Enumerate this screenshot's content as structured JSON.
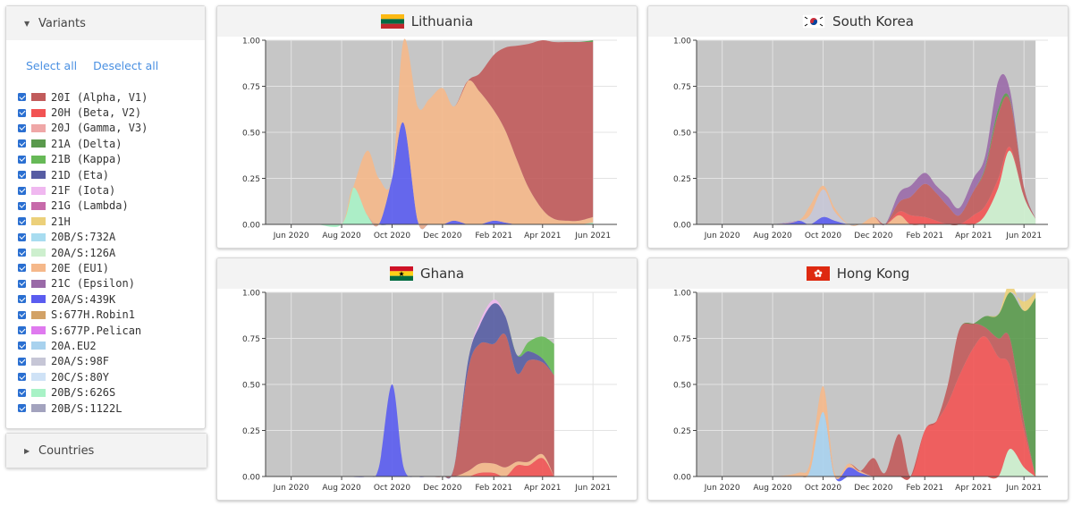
{
  "sidebar": {
    "variants_header": "Variants",
    "select_all": "Select all",
    "deselect_all": "Deselect all",
    "countries_header": "Countries",
    "variants": [
      {
        "label": "20I (Alpha, V1)",
        "color": "#c15b5b",
        "checked": true
      },
      {
        "label": "20H (Beta, V2)",
        "color": "#f25353",
        "checked": true
      },
      {
        "label": "20J (Gamma, V3)",
        "color": "#efa7a7",
        "checked": true
      },
      {
        "label": "21A (Delta)",
        "color": "#5a9a4d",
        "checked": true
      },
      {
        "label": "21B (Kappa)",
        "color": "#67b957",
        "checked": true
      },
      {
        "label": "21D (Eta)",
        "color": "#575da3",
        "checked": true
      },
      {
        "label": "21F (Iota)",
        "color": "#f0b8f0",
        "checked": true
      },
      {
        "label": "21G (Lambda)",
        "color": "#c76aaa",
        "checked": true
      },
      {
        "label": "21H",
        "color": "#ecd07a",
        "checked": true
      },
      {
        "label": "20B/S:732A",
        "color": "#a8dcf0",
        "checked": true
      },
      {
        "label": "20A/S:126A",
        "color": "#cdefce",
        "checked": true
      },
      {
        "label": "20E (EU1)",
        "color": "#f5b88a",
        "checked": true
      },
      {
        "label": "21C (Epsilon)",
        "color": "#9a6aa8",
        "checked": true
      },
      {
        "label": "20A/S:439K",
        "color": "#5a5cf0",
        "checked": true
      },
      {
        "label": "S:677H.Robin1",
        "color": "#d2a267",
        "checked": true
      },
      {
        "label": "S:677P.Pelican",
        "color": "#df7aef",
        "checked": true
      },
      {
        "label": "20A.EU2",
        "color": "#a8d2ee",
        "checked": true
      },
      {
        "label": "20A/S:98F",
        "color": "#c6c6d6",
        "checked": true
      },
      {
        "label": "20C/S:80Y",
        "color": "#cfe2f6",
        "checked": true
      },
      {
        "label": "20B/S:626S",
        "color": "#a8f2c6",
        "checked": true
      },
      {
        "label": "20B/S:1122L",
        "color": "#a3a3be",
        "checked": true
      }
    ]
  },
  "chart_data": [
    {
      "type": "area",
      "country": "Lithuania",
      "flag": "lithuania",
      "x": [
        "2020-05-01",
        "2020-06-01",
        "2020-07-01",
        "2020-08-01",
        "2020-08-15",
        "2020-09-01",
        "2020-09-15",
        "2020-10-01",
        "2020-10-15",
        "2020-11-01",
        "2020-11-15",
        "2020-12-01",
        "2020-12-15",
        "2021-01-01",
        "2021-01-15",
        "2021-02-01",
        "2021-02-15",
        "2021-03-01",
        "2021-03-15",
        "2021-04-01",
        "2021-04-15",
        "2021-05-01",
        "2021-05-15",
        "2021-06-01"
      ],
      "xticks": [
        "Jun 2020",
        "Aug 2020",
        "Oct 2020",
        "Dec 2020",
        "Feb 2021",
        "Apr 2021",
        "Jun 2021"
      ],
      "ylim": [
        0,
        1
      ],
      "yticks": [
        "0.00",
        "0.25",
        "0.50",
        "0.75",
        "1.00"
      ],
      "data_range": [
        "2020-05-01",
        "2021-06-01"
      ],
      "series": [
        {
          "color": "#a8f2c6",
          "values": [
            0,
            0,
            0,
            0,
            0.2,
            0.05,
            0,
            0,
            0,
            0,
            0,
            0,
            0,
            0,
            0,
            0,
            0,
            0,
            0,
            0,
            0,
            0,
            0,
            0.01
          ]
        },
        {
          "color": "#5a5cf0",
          "values": [
            0,
            0,
            0,
            0,
            0,
            0,
            0,
            0.25,
            0.55,
            0.02,
            0,
            0,
            0.02,
            0,
            0,
            0.02,
            0.01,
            0,
            0,
            0,
            0,
            0,
            0,
            0
          ]
        },
        {
          "color": "#f5b88a",
          "values": [
            0,
            0,
            0,
            0,
            0,
            0.35,
            0.25,
            0,
            0.45,
            0.62,
            0.68,
            0.74,
            0.62,
            0.78,
            0.72,
            0.6,
            0.5,
            0.35,
            0.2,
            0.08,
            0.03,
            0.02,
            0.02,
            0.03
          ]
        },
        {
          "color": "#c15b5b",
          "values": [
            0,
            0,
            0,
            0,
            0,
            0,
            0,
            0,
            0,
            0,
            0,
            0,
            0,
            0,
            0.1,
            0.3,
            0.45,
            0.62,
            0.78,
            0.92,
            0.96,
            0.97,
            0.97,
            0.95
          ]
        },
        {
          "color": "#5a9a4d",
          "values": [
            0,
            0,
            0,
            0,
            0,
            0,
            0,
            0,
            0,
            0,
            0,
            0,
            0,
            0,
            0,
            0,
            0,
            0,
            0,
            0,
            0,
            0,
            0,
            0.01
          ]
        }
      ]
    },
    {
      "type": "area",
      "country": "South Korea",
      "flag": "south-korea",
      "x": [
        "2020-05-01",
        "2020-06-01",
        "2020-07-01",
        "2020-08-01",
        "2020-09-01",
        "2020-09-15",
        "2020-10-01",
        "2020-10-15",
        "2020-11-01",
        "2020-11-15",
        "2020-12-01",
        "2020-12-15",
        "2021-01-01",
        "2021-01-15",
        "2021-02-01",
        "2021-02-15",
        "2021-03-01",
        "2021-03-15",
        "2021-04-01",
        "2021-04-15",
        "2021-05-01",
        "2021-05-15",
        "2021-06-01",
        "2021-06-15"
      ],
      "xticks": [
        "Jun 2020",
        "Aug 2020",
        "Oct 2020",
        "Dec 2020",
        "Feb 2021",
        "Apr 2021",
        "Jun 2021"
      ],
      "ylim": [
        0,
        1
      ],
      "yticks": [
        "0.00",
        "0.25",
        "0.50",
        "0.75",
        "1.00"
      ],
      "data_range": [
        "2020-05-01",
        "2021-06-15"
      ],
      "series": [
        {
          "color": "#cdefce",
          "values": [
            0,
            0,
            0,
            0,
            0,
            0,
            0,
            0,
            0,
            0,
            0,
            0,
            0,
            0,
            0,
            0,
            0,
            0,
            0,
            0.05,
            0.2,
            0.4,
            0.15,
            0.03
          ]
        },
        {
          "color": "#5a5cf0",
          "values": [
            0,
            0,
            0,
            0,
            0.02,
            0,
            0.04,
            0.02,
            0,
            0,
            0,
            0,
            0,
            0,
            0,
            0,
            0,
            0,
            0,
            0,
            0,
            0,
            0,
            0
          ]
        },
        {
          "color": "#c6c6d6",
          "values": [
            0,
            0,
            0,
            0,
            0,
            0.05,
            0.15,
            0.05,
            0,
            0,
            0,
            0,
            0,
            0,
            0,
            0,
            0,
            0,
            0,
            0,
            0,
            0,
            0,
            0
          ]
        },
        {
          "color": "#f5b88a",
          "values": [
            0,
            0,
            0,
            0,
            0,
            0.05,
            0.02,
            0.02,
            0,
            0,
            0.04,
            0,
            0.05,
            0,
            0,
            0,
            0,
            0,
            0,
            0,
            0,
            0,
            0,
            0
          ]
        },
        {
          "color": "#f25353",
          "values": [
            0,
            0,
            0,
            0,
            0,
            0,
            0,
            0,
            0,
            0,
            0,
            0,
            0.02,
            0.05,
            0.04,
            0.02,
            0,
            0,
            0.05,
            0.05,
            0.05,
            0.02,
            0,
            0
          ]
        },
        {
          "color": "#c15b5b",
          "values": [
            0,
            0,
            0,
            0,
            0,
            0,
            0,
            0,
            0,
            0,
            0,
            0,
            0.05,
            0.1,
            0.18,
            0.15,
            0.1,
            0.05,
            0.13,
            0.2,
            0.35,
            0.25,
            0.05,
            0
          ]
        },
        {
          "color": "#5a9a4d",
          "values": [
            0,
            0,
            0,
            0,
            0,
            0,
            0,
            0,
            0,
            0,
            0,
            0,
            0,
            0,
            0,
            0,
            0,
            0,
            0,
            0.01,
            0.03,
            0.01,
            0,
            0
          ]
        },
        {
          "color": "#9a6aa8",
          "values": [
            0,
            0,
            0,
            0,
            0,
            0,
            0,
            0,
            0,
            0,
            0,
            0,
            0.05,
            0.06,
            0.06,
            0.04,
            0.05,
            0.04,
            0.07,
            0.06,
            0.15,
            0.05,
            0,
            0
          ]
        }
      ]
    },
    {
      "type": "area",
      "country": "Ghana",
      "flag": "ghana",
      "x": [
        "2020-05-01",
        "2020-06-01",
        "2020-07-01",
        "2020-08-01",
        "2020-09-01",
        "2020-09-15",
        "2020-10-01",
        "2020-10-15",
        "2020-11-01",
        "2020-11-15",
        "2020-12-01",
        "2020-12-15",
        "2021-01-01",
        "2021-01-15",
        "2021-02-01",
        "2021-02-15",
        "2021-03-01",
        "2021-03-15",
        "2021-04-01",
        "2021-04-15"
      ],
      "xticks": [
        "Jun 2020",
        "Aug 2020",
        "Oct 2020",
        "Dec 2020",
        "Feb 2021",
        "Apr 2021",
        "Jun 2021"
      ],
      "ylim": [
        0,
        1
      ],
      "yticks": [
        "0.00",
        "0.25",
        "0.50",
        "0.75",
        "1.00"
      ],
      "data_range": [
        "2020-05-01",
        "2021-04-15"
      ],
      "series": [
        {
          "color": "#f25353",
          "values": [
            0,
            0,
            0,
            0,
            0,
            0,
            0,
            0,
            0,
            0,
            0,
            0,
            0,
            0.02,
            0.02,
            0,
            0.06,
            0.06,
            0.1,
            0
          ]
        },
        {
          "color": "#f5b88a",
          "values": [
            0,
            0,
            0,
            0,
            0,
            0,
            0,
            0,
            0,
            0,
            0,
            0,
            0.03,
            0.05,
            0.05,
            0.05,
            0.02,
            0.02,
            0.02,
            0
          ]
        },
        {
          "color": "#5a5cf0",
          "values": [
            0,
            0,
            0,
            0,
            0,
            0.05,
            0.5,
            0.05,
            0,
            0,
            0,
            0,
            0,
            0,
            0,
            0,
            0,
            0,
            0,
            0
          ]
        },
        {
          "color": "#c15b5b",
          "values": [
            0,
            0,
            0,
            0,
            0,
            0,
            0,
            0,
            0,
            0,
            0,
            0.05,
            0.55,
            0.65,
            0.65,
            0.72,
            0.48,
            0.55,
            0.5,
            0.55
          ]
        },
        {
          "color": "#575da3",
          "values": [
            0,
            0,
            0,
            0,
            0,
            0,
            0,
            0,
            0,
            0,
            0,
            0,
            0.05,
            0.1,
            0.22,
            0.1,
            0.1,
            0.05,
            0.02,
            0
          ]
        },
        {
          "color": "#f0b8f0",
          "values": [
            0,
            0,
            0,
            0,
            0,
            0,
            0,
            0,
            0,
            0,
            0,
            0,
            0,
            0.02,
            0.02,
            0,
            0,
            0,
            0,
            0
          ]
        },
        {
          "color": "#67b957",
          "values": [
            0,
            0,
            0,
            0,
            0,
            0,
            0,
            0,
            0,
            0,
            0,
            0,
            0,
            0,
            0,
            0,
            0,
            0.05,
            0.12,
            0.17
          ]
        }
      ]
    },
    {
      "type": "area",
      "country": "Hong Kong",
      "flag": "hong-kong",
      "x": [
        "2020-05-01",
        "2020-06-01",
        "2020-07-01",
        "2020-08-01",
        "2020-09-01",
        "2020-09-15",
        "2020-10-01",
        "2020-10-15",
        "2020-11-01",
        "2020-11-15",
        "2020-12-01",
        "2020-12-15",
        "2021-01-01",
        "2021-01-15",
        "2021-02-01",
        "2021-02-15",
        "2021-03-01",
        "2021-03-15",
        "2021-04-01",
        "2021-04-15",
        "2021-05-01",
        "2021-05-15",
        "2021-06-01",
        "2021-06-15"
      ],
      "xticks": [
        "Jun 2020",
        "Aug 2020",
        "Oct 2020",
        "Dec 2020",
        "Feb 2021",
        "Apr 2021",
        "Jun 2021"
      ],
      "ylim": [
        0,
        1
      ],
      "yticks": [
        "0.00",
        "0.25",
        "0.50",
        "0.75",
        "1.00"
      ],
      "data_range": [
        "2020-05-01",
        "2021-06-15"
      ],
      "series": [
        {
          "color": "#cdefce",
          "values": [
            0,
            0,
            0,
            0,
            0,
            0,
            0,
            0,
            0,
            0,
            0,
            0,
            0,
            0,
            0,
            0,
            0,
            0,
            0,
            0,
            0,
            0.15,
            0.05,
            0
          ]
        },
        {
          "color": "#a8d2ee",
          "values": [
            0,
            0,
            0,
            0,
            0,
            0.03,
            0.35,
            0,
            0,
            0,
            0,
            0,
            0,
            0,
            0,
            0,
            0,
            0,
            0,
            0,
            0,
            0,
            0,
            0
          ]
        },
        {
          "color": "#5a5cf0",
          "values": [
            0,
            0,
            0,
            0,
            0,
            0,
            0,
            0,
            0.05,
            0.02,
            0,
            0,
            0,
            0,
            0,
            0,
            0,
            0,
            0,
            0,
            0,
            0,
            0,
            0
          ]
        },
        {
          "color": "#f5b88a",
          "values": [
            0,
            0,
            0,
            0,
            0.02,
            0.04,
            0.14,
            0.02,
            0.02,
            0.01,
            0,
            0,
            0,
            0,
            0,
            0,
            0,
            0,
            0,
            0,
            0,
            0,
            0,
            0
          ]
        },
        {
          "color": "#f25353",
          "values": [
            0,
            0,
            0,
            0,
            0,
            0,
            0,
            0,
            0,
            0,
            0,
            0,
            0,
            0,
            0.25,
            0.3,
            0.4,
            0.55,
            0.7,
            0.76,
            0.65,
            0.45,
            0.2,
            0
          ]
        },
        {
          "color": "#c15b5b",
          "values": [
            0,
            0,
            0,
            0,
            0,
            0,
            0,
            0,
            0,
            0,
            0.1,
            0.02,
            0.23,
            0,
            0,
            0,
            0.1,
            0.25,
            0.13,
            0.05,
            0.1,
            0.15,
            0.05,
            0
          ]
        },
        {
          "color": "#5a9a4d",
          "values": [
            0,
            0,
            0,
            0,
            0,
            0,
            0,
            0,
            0,
            0,
            0,
            0,
            0,
            0,
            0,
            0,
            0,
            0,
            0,
            0.06,
            0.13,
            0.3,
            0.6,
            0.97
          ]
        },
        {
          "color": "#ecd07a",
          "values": [
            0,
            0,
            0,
            0,
            0,
            0,
            0,
            0,
            0,
            0,
            0,
            0,
            0,
            0,
            0,
            0,
            0,
            0,
            0,
            0,
            0,
            0,
            0.05,
            0.03
          ]
        }
      ]
    }
  ]
}
